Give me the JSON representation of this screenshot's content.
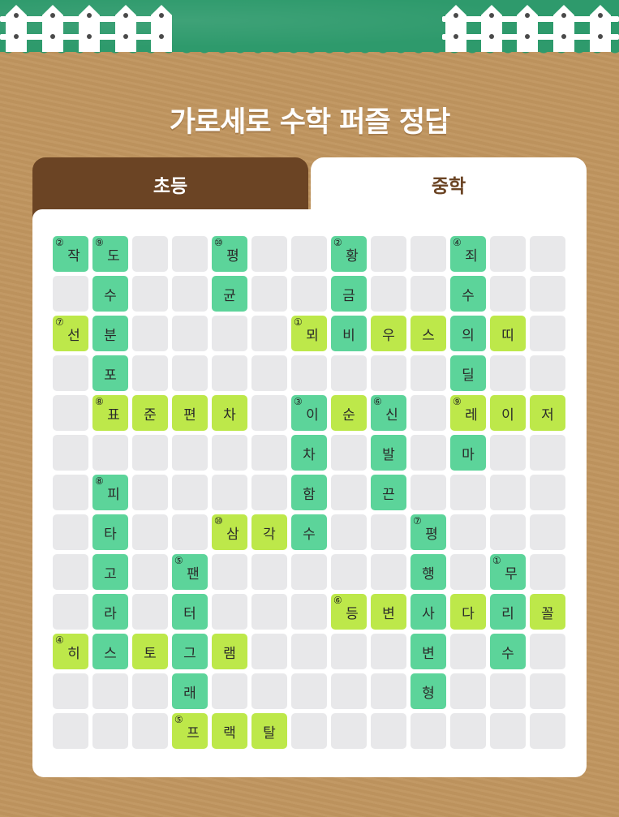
{
  "title": "가로세로 수학 퍼즐 정답",
  "tabs": [
    {
      "label": "초등",
      "active": false
    },
    {
      "label": "중학",
      "active": true
    }
  ],
  "colors": {
    "vertical_word": "#5cd49a",
    "horizontal_word": "#bde84a",
    "empty": "#e8e8ea",
    "tab_dark": "#6b4424",
    "grass": "#2e9a6c",
    "background": "#c0955f"
  },
  "grid_rows": [
    [
      "g:작:②",
      "g:도:⑨",
      "",
      "",
      "g:평:⑩",
      "",
      "",
      "g:황:②",
      "",
      "",
      "g:죄:④",
      "",
      ""
    ],
    [
      "",
      "g:수",
      "",
      "",
      "g:균",
      "",
      "",
      "g:금",
      "",
      "",
      "g:수",
      "",
      ""
    ],
    [
      "l:선:⑦",
      "g:분",
      "",
      "",
      "",
      "",
      "l:뫼:①",
      "g:비",
      "l:우",
      "l:스",
      "g:의",
      "l:띠",
      ""
    ],
    [
      "",
      "g:포",
      "",
      "",
      "",
      "",
      "",
      "",
      "",
      "",
      "g:딜",
      "",
      ""
    ],
    [
      "",
      "l:표:⑧",
      "l:준",
      "l:편",
      "l:차",
      "",
      "g:이:③",
      "l:순",
      "g:신:⑥",
      "",
      "l:레:⑨",
      "l:이",
      "l:저"
    ],
    [
      "",
      "",
      "",
      "",
      "",
      "",
      "g:차",
      "",
      "g:발",
      "",
      "g:마",
      "",
      ""
    ],
    [
      "",
      "g:피:⑧",
      "",
      "",
      "",
      "",
      "g:함",
      "",
      "g:끈",
      "",
      "",
      "",
      ""
    ],
    [
      "",
      "g:타",
      "",
      "",
      "l:삼:⑩",
      "l:각",
      "g:수",
      "",
      "",
      "g:평:⑦",
      "",
      "",
      ""
    ],
    [
      "",
      "g:고",
      "",
      "g:팬:⑤",
      "",
      "",
      "",
      "",
      "",
      "g:행",
      "",
      "g:무:①",
      ""
    ],
    [
      "",
      "g:라",
      "",
      "g:터",
      "",
      "",
      "",
      "l:등:⑥",
      "l:변",
      "g:사",
      "l:다",
      "g:리",
      "l:꼴"
    ],
    [
      "l:히:④",
      "g:스",
      "l:토",
      "g:그",
      "l:램",
      "",
      "",
      "",
      "",
      "g:변",
      "",
      "g:수",
      ""
    ],
    [
      "",
      "",
      "",
      "g:래",
      "",
      "",
      "",
      "",
      "",
      "g:형",
      "",
      "",
      ""
    ],
    [
      "",
      "",
      "",
      "l:프:⑤",
      "l:랙",
      "l:탈",
      "",
      "",
      "",
      "",
      "",
      "",
      ""
    ]
  ]
}
